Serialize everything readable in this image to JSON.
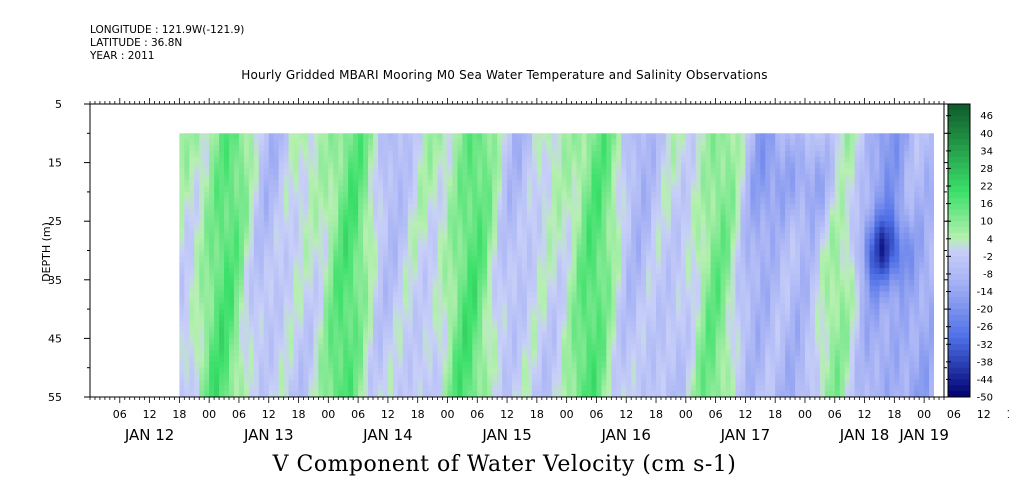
{
  "header": {
    "longitude": "LONGITUDE : 121.9W(-121.9)",
    "latitude": "LATITUDE : 36.8N",
    "year": "YEAR : 2011"
  },
  "chart_data": {
    "type": "heatmap",
    "title": "Hourly Gridded MBARI Mooring M0 Sea Water Temperature and Salinity Observations",
    "variable_label": "V Component of Water Velocity (cm s-1)",
    "ylabel": "DEPTH (m)",
    "y_reversed": true,
    "ylim": [
      5,
      55
    ],
    "y_ticks": [
      5,
      15,
      25,
      35,
      45,
      55
    ],
    "data_depth_range": [
      10,
      55
    ],
    "x_range_hours": [
      0,
      172
    ],
    "data_start_hour": 18,
    "x_hour_tick_labels": [
      "06",
      "12",
      "18",
      "00",
      "06",
      "12",
      "18",
      "00",
      "06",
      "12",
      "18",
      "00",
      "06",
      "12",
      "18",
      "00",
      "06",
      "12",
      "18",
      "00",
      "06",
      "12",
      "18",
      "00",
      "06",
      "12",
      "18",
      "00",
      "06",
      "12",
      "18",
      "00"
    ],
    "x_date_labels": [
      "JAN 12",
      "JAN 13",
      "JAN 14",
      "JAN 15",
      "JAN 16",
      "JAN 17",
      "JAN 18",
      "JAN 19"
    ],
    "colorbar": {
      "ticks": [
        46,
        40,
        34,
        28,
        22,
        16,
        10,
        4,
        -2,
        -8,
        -14,
        -20,
        -26,
        -32,
        -38,
        -44,
        -50
      ],
      "range": [
        -50,
        50
      ]
    },
    "colors": {
      "neg_strong": "#000070",
      "neg_mid": "#4d6ee6",
      "neg_light": "#a9b4f5",
      "near_zero": "#c8cff8",
      "pos_light": "#b6f0b0",
      "pos_mid": "#3ce06a",
      "pos_strong": "#0e5a2a"
    }
  }
}
